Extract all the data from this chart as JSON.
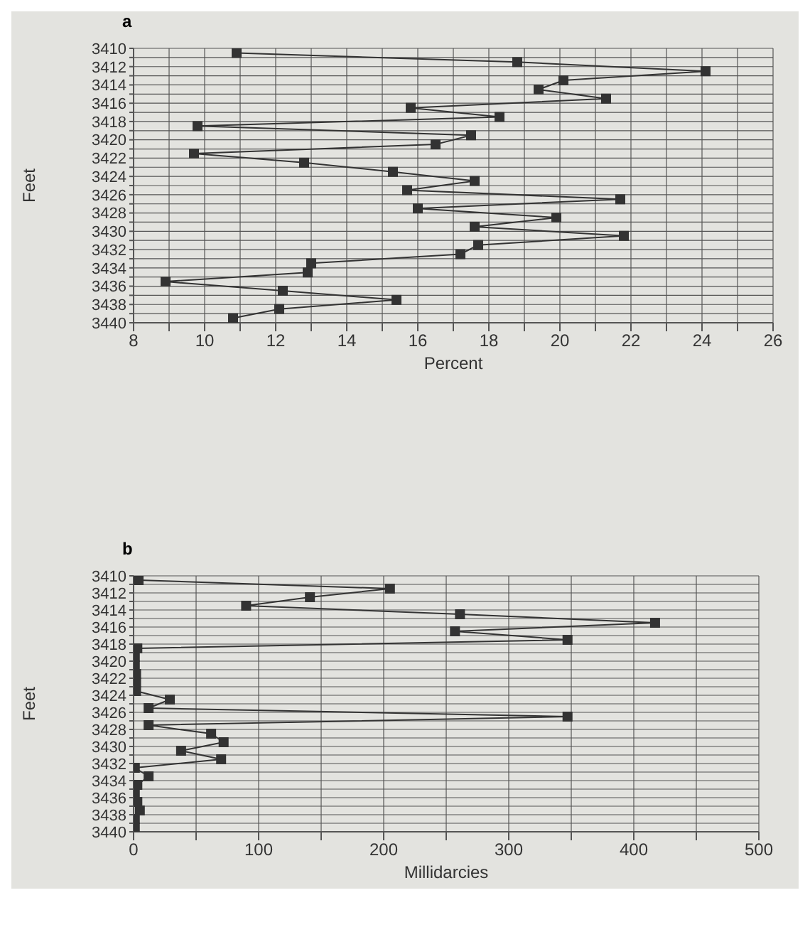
{
  "chart_data": [
    {
      "type": "line",
      "title": "a",
      "xlabel": "Percent",
      "ylabel": "Feet",
      "orientation": "horizontal",
      "marker": "square",
      "grid": true,
      "color": "#333333",
      "x": [
        3410.5,
        3411.5,
        3412.5,
        3413.5,
        3414.5,
        3415.5,
        3416.5,
        3417.5,
        3418.5,
        3419.5,
        3420.5,
        3421.5,
        3422.5,
        3423.5,
        3424.5,
        3425.5,
        3426.5,
        3427.5,
        3428.5,
        3429.5,
        3430.5,
        3431.5,
        3432.5,
        3433.5,
        3434.5,
        3435.5,
        3436.5,
        3437.5,
        3438.5,
        3439.5
      ],
      "values": [
        10.9,
        18.8,
        24.1,
        20.1,
        19.4,
        21.3,
        15.8,
        18.3,
        9.8,
        17.5,
        16.5,
        9.7,
        12.8,
        15.3,
        17.6,
        15.7,
        21.7,
        16.0,
        19.9,
        17.6,
        21.8,
        17.7,
        17.2,
        13.0,
        12.9,
        8.9,
        12.2,
        15.4,
        12.1,
        10.8
      ],
      "xlim": [
        8,
        26
      ],
      "xticks": [
        8,
        {
          "value": 9,
          "label": null
        },
        10,
        {
          "value": 11,
          "label": null
        },
        12,
        {
          "value": 13,
          "label": null
        },
        14,
        {
          "value": 15,
          "label": null
        },
        16,
        {
          "value": 17,
          "label": null
        },
        18,
        {
          "value": 19,
          "label": null
        },
        20,
        {
          "value": 21,
          "label": null
        },
        22,
        {
          "value": 23,
          "label": null
        },
        24,
        {
          "value": 25,
          "label": null
        },
        26
      ],
      "ylim": [
        3440,
        3410
      ],
      "yticks": [
        3410,
        {
          "value": 3411,
          "label": null
        },
        3412,
        {
          "value": 3413,
          "label": null
        },
        3414,
        {
          "value": 3415,
          "label": null
        },
        3416,
        {
          "value": 3417,
          "label": null
        },
        3418,
        {
          "value": 3419,
          "label": null
        },
        3420,
        {
          "value": 3421,
          "label": null
        },
        3422,
        {
          "value": 3423,
          "label": null
        },
        3424,
        {
          "value": 3425,
          "label": null
        },
        3426,
        {
          "value": 3427,
          "label": null
        },
        3428,
        {
          "value": 3429,
          "label": null
        },
        3430,
        {
          "value": 3431,
          "label": null
        },
        3432,
        {
          "value": 3433,
          "label": null
        },
        3434,
        {
          "value": 3435,
          "label": null
        },
        3436,
        {
          "value": 3437,
          "label": null
        },
        3438,
        {
          "value": 3439,
          "label": null
        },
        3440
      ]
    },
    {
      "type": "line",
      "title": "b",
      "xlabel": "Millidarcies",
      "ylabel": "Feet",
      "orientation": "horizontal",
      "marker": "square",
      "grid": true,
      "color": "#333333",
      "x": [
        3410.5,
        3411.5,
        3412.5,
        3413.5,
        3414.5,
        3415.5,
        3416.5,
        3417.5,
        3418.5,
        3419.5,
        3420.5,
        3421.5,
        3422.5,
        3423.5,
        3424.5,
        3425.5,
        3426.5,
        3427.5,
        3428.5,
        3429.5,
        3430.5,
        3431.5,
        3432.5,
        3433.5,
        3434.5,
        3435.5,
        3436.5,
        3437.5,
        3438.5,
        3439.5
      ],
      "values": [
        4,
        205,
        141,
        90,
        261,
        417,
        257,
        347,
        3,
        1,
        1,
        2,
        2,
        2,
        29,
        12,
        347,
        12,
        62,
        72,
        38,
        70,
        1,
        12,
        3,
        1,
        3,
        5,
        1,
        1
      ],
      "xlim": [
        0,
        500
      ],
      "xticks": [
        0,
        {
          "value": 50,
          "label": null
        },
        100,
        {
          "value": 150,
          "label": null
        },
        200,
        {
          "value": 250,
          "label": null
        },
        300,
        {
          "value": 350,
          "label": null
        },
        400,
        {
          "value": 450,
          "label": null
        },
        500
      ],
      "ylim": [
        3440,
        3410
      ],
      "yticks": [
        3410,
        {
          "value": 3411,
          "label": null
        },
        3412,
        {
          "value": 3413,
          "label": null
        },
        3414,
        {
          "value": 3415,
          "label": null
        },
        3416,
        {
          "value": 3417,
          "label": null
        },
        3418,
        {
          "value": 3419,
          "label": null
        },
        3420,
        {
          "value": 3421,
          "label": null
        },
        3422,
        {
          "value": 3423,
          "label": null
        },
        3424,
        {
          "value": 3425,
          "label": null
        },
        3426,
        {
          "value": 3427,
          "label": null
        },
        3428,
        {
          "value": 3429,
          "label": null
        },
        3430,
        {
          "value": 3431,
          "label": null
        },
        3432,
        {
          "value": 3433,
          "label": null
        },
        3434,
        {
          "value": 3435,
          "label": null
        },
        3436,
        {
          "value": 3437,
          "label": null
        },
        3438,
        {
          "value": 3439,
          "label": null
        },
        3440
      ]
    }
  ]
}
